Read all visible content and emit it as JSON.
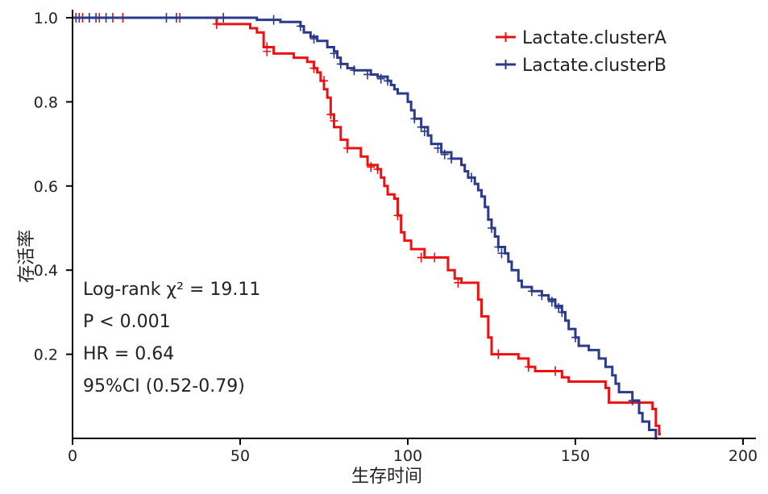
{
  "chart_data": {
    "type": "line",
    "subtype": "kaplan-meier step",
    "xlabel": "生存时间",
    "ylabel": "存活率",
    "xlim": [
      0,
      200
    ],
    "ylim": [
      0,
      1.0
    ],
    "xticks": [
      "0",
      "50",
      "100",
      "150",
      "200"
    ],
    "xtick_values": [
      0,
      50,
      100,
      150,
      200
    ],
    "yticks": [
      "0.2",
      "0.4",
      "0.6",
      "0.8",
      "1.0"
    ],
    "ytick_values": [
      0.2,
      0.4,
      0.6,
      0.8,
      1.0
    ],
    "grid": false,
    "legend_position": "top-right",
    "series": [
      {
        "name": "Lactate.clusterA",
        "color": "#ee1111",
        "steps": [
          [
            0,
            1.0
          ],
          [
            43,
            0.985
          ],
          [
            53,
            0.975
          ],
          [
            55,
            0.965
          ],
          [
            57,
            0.93
          ],
          [
            60,
            0.915
          ],
          [
            66,
            0.905
          ],
          [
            70,
            0.895
          ],
          [
            72,
            0.88
          ],
          [
            73,
            0.87
          ],
          [
            74,
            0.85
          ],
          [
            75,
            0.83
          ],
          [
            76,
            0.81
          ],
          [
            77,
            0.77
          ],
          [
            78,
            0.74
          ],
          [
            80,
            0.71
          ],
          [
            82,
            0.69
          ],
          [
            86,
            0.67
          ],
          [
            88,
            0.65
          ],
          [
            91,
            0.64
          ],
          [
            92,
            0.62
          ],
          [
            93,
            0.6
          ],
          [
            94,
            0.58
          ],
          [
            96,
            0.57
          ],
          [
            97,
            0.53
          ],
          [
            98,
            0.49
          ],
          [
            99,
            0.47
          ],
          [
            101,
            0.45
          ],
          [
            105,
            0.43
          ],
          [
            112,
            0.4
          ],
          [
            114,
            0.38
          ],
          [
            116,
            0.37
          ],
          [
            121,
            0.33
          ],
          [
            122,
            0.29
          ],
          [
            124,
            0.24
          ],
          [
            125,
            0.2
          ],
          [
            133,
            0.19
          ],
          [
            136,
            0.17
          ],
          [
            138,
            0.16
          ],
          [
            146,
            0.145
          ],
          [
            148,
            0.135
          ],
          [
            159,
            0.12
          ],
          [
            160,
            0.085
          ],
          [
            173,
            0.07
          ],
          [
            174,
            0.03
          ],
          [
            175,
            0.01
          ]
        ],
        "censored": [
          [
            1,
            1.0
          ],
          [
            3,
            1.0
          ],
          [
            8,
            1.0
          ],
          [
            12,
            1.0
          ],
          [
            15,
            1.0
          ],
          [
            32,
            1.0
          ],
          [
            43,
            0.985
          ],
          [
            58,
            0.93
          ],
          [
            58,
            0.92
          ],
          [
            72,
            0.88
          ],
          [
            75,
            0.85
          ],
          [
            77,
            0.77
          ],
          [
            78,
            0.755
          ],
          [
            82,
            0.69
          ],
          [
            89,
            0.645
          ],
          [
            91,
            0.64
          ],
          [
            97,
            0.53
          ],
          [
            104,
            0.43
          ],
          [
            108,
            0.43
          ],
          [
            115,
            0.37
          ],
          [
            127,
            0.2
          ],
          [
            136,
            0.17
          ],
          [
            144,
            0.16
          ]
        ]
      },
      {
        "name": "Lactate.clusterB",
        "color": "#2b3a8a",
        "steps": [
          [
            0,
            1.0
          ],
          [
            55,
            0.995
          ],
          [
            62,
            0.99
          ],
          [
            68,
            0.98
          ],
          [
            69,
            0.965
          ],
          [
            71,
            0.955
          ],
          [
            73,
            0.945
          ],
          [
            76,
            0.93
          ],
          [
            78,
            0.92
          ],
          [
            79,
            0.905
          ],
          [
            80,
            0.89
          ],
          [
            82,
            0.88
          ],
          [
            84,
            0.875
          ],
          [
            89,
            0.865
          ],
          [
            91,
            0.86
          ],
          [
            94,
            0.85
          ],
          [
            95,
            0.84
          ],
          [
            96,
            0.83
          ],
          [
            97,
            0.82
          ],
          [
            100,
            0.8
          ],
          [
            101,
            0.78
          ],
          [
            102,
            0.76
          ],
          [
            104,
            0.74
          ],
          [
            106,
            0.72
          ],
          [
            107,
            0.7
          ],
          [
            110,
            0.68
          ],
          [
            113,
            0.665
          ],
          [
            116,
            0.65
          ],
          [
            117,
            0.635
          ],
          [
            118,
            0.62
          ],
          [
            120,
            0.605
          ],
          [
            121,
            0.59
          ],
          [
            122,
            0.575
          ],
          [
            123,
            0.55
          ],
          [
            124,
            0.52
          ],
          [
            125,
            0.5
          ],
          [
            126,
            0.48
          ],
          [
            127,
            0.455
          ],
          [
            129,
            0.44
          ],
          [
            130,
            0.42
          ],
          [
            131,
            0.4
          ],
          [
            133,
            0.375
          ],
          [
            134,
            0.36
          ],
          [
            137,
            0.35
          ],
          [
            140,
            0.34
          ],
          [
            142,
            0.33
          ],
          [
            144,
            0.315
          ],
          [
            146,
            0.3
          ],
          [
            147,
            0.28
          ],
          [
            148,
            0.26
          ],
          [
            150,
            0.24
          ],
          [
            151,
            0.22
          ],
          [
            154,
            0.21
          ],
          [
            157,
            0.19
          ],
          [
            159,
            0.17
          ],
          [
            161,
            0.15
          ],
          [
            162,
            0.13
          ],
          [
            163,
            0.11
          ],
          [
            167,
            0.09
          ],
          [
            169,
            0.06
          ],
          [
            170,
            0.04
          ],
          [
            172,
            0.02
          ],
          [
            174,
            0.0
          ]
        ],
        "censored": [
          [
            2,
            1.0
          ],
          [
            5,
            1.0
          ],
          [
            7,
            1.0
          ],
          [
            10,
            1.0
          ],
          [
            28,
            1.0
          ],
          [
            31,
            1.0
          ],
          [
            45,
            1.0
          ],
          [
            60,
            0.995
          ],
          [
            68,
            0.98
          ],
          [
            72,
            0.95
          ],
          [
            78,
            0.915
          ],
          [
            80,
            0.89
          ],
          [
            84,
            0.875
          ],
          [
            88,
            0.865
          ],
          [
            92,
            0.855
          ],
          [
            94,
            0.85
          ],
          [
            102,
            0.76
          ],
          [
            104,
            0.74
          ],
          [
            105,
            0.73
          ],
          [
            109,
            0.69
          ],
          [
            111,
            0.675
          ],
          [
            113,
            0.665
          ],
          [
            119,
            0.62
          ],
          [
            125,
            0.5
          ],
          [
            127,
            0.455
          ],
          [
            128,
            0.44
          ],
          [
            137,
            0.35
          ],
          [
            140,
            0.34
          ],
          [
            143,
            0.325
          ],
          [
            145,
            0.31
          ],
          [
            146,
            0.3
          ],
          [
            150,
            0.24
          ],
          [
            167,
            0.09
          ]
        ]
      }
    ],
    "annotations": [
      "Log-rank  χ² = 19.11",
      "P < 0.001",
      "HR = 0.64",
      "95%CI (0.52-0.79)"
    ]
  }
}
